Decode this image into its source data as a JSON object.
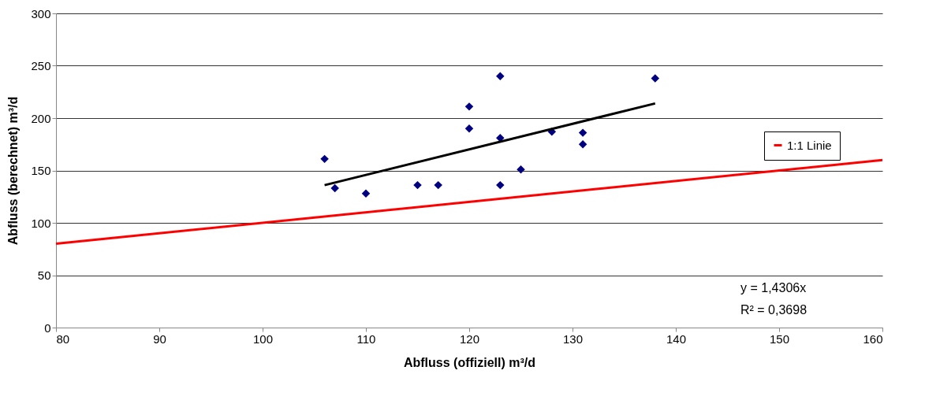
{
  "chart_data": {
    "type": "scatter",
    "xlabel": "Abfluss (offiziell) m³/d",
    "ylabel": "Abfluss (berechnet) m³/d",
    "series": [
      {
        "color": "#000080",
        "marker": "diamond",
        "x": [
          106,
          107,
          110,
          115,
          117,
          120,
          120,
          123,
          123,
          123,
          125,
          128,
          131,
          131,
          138
        ],
        "values": [
          161,
          133,
          128,
          136,
          136,
          211,
          190,
          240,
          181,
          136,
          151,
          187,
          186,
          175,
          238
        ]
      },
      {
        "type": "line",
        "color": "#000000",
        "x": [
          106,
          138
        ],
        "values": [
          136,
          214
        ]
      },
      {
        "type": "line",
        "name": "1:1 Linie",
        "color": "#ff0000",
        "x": [
          80,
          160
        ],
        "values": [
          80,
          160
        ]
      }
    ],
    "xlim": [
      80,
      160
    ],
    "xticks": [
      80,
      90,
      100,
      110,
      120,
      130,
      140,
      150,
      160
    ],
    "ylim": [
      0,
      300
    ],
    "yticks": [
      0,
      50,
      100,
      150,
      200,
      250,
      300
    ],
    "grid": "y",
    "legend": "right",
    "annotations": [
      "y = 1,4306x",
      "R² = 0,3698"
    ]
  }
}
